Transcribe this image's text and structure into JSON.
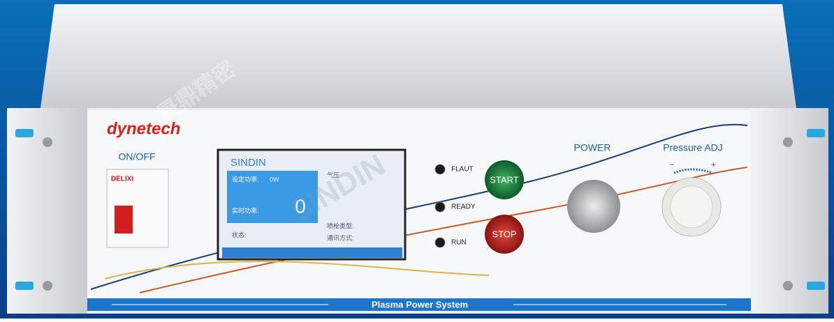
{
  "brand": "dynetech",
  "switch": {
    "label": "ON/OFF",
    "maker": "DELIXI"
  },
  "screen": {
    "title": "SINDIN",
    "set_power_label": "设定功率:",
    "set_power": "0W",
    "pressure_label": "气压",
    "realtime_label": "实时功率:",
    "realtime_value": "0",
    "status_label": "状态:",
    "gun_label": "喷枪类型:",
    "comm_label": "通讯方式:"
  },
  "indicators": [
    "FLAUT",
    "READY",
    "RUN"
  ],
  "buttons": {
    "start": "START",
    "stop": "STOP"
  },
  "knobs": {
    "power": "POWER",
    "pressure": "Pressure ADJ",
    "minus": "−",
    "plus": "+"
  },
  "footer": "Plasma Power System",
  "watermarks": [
    "SINDIN",
    "晟鼎精密"
  ]
}
